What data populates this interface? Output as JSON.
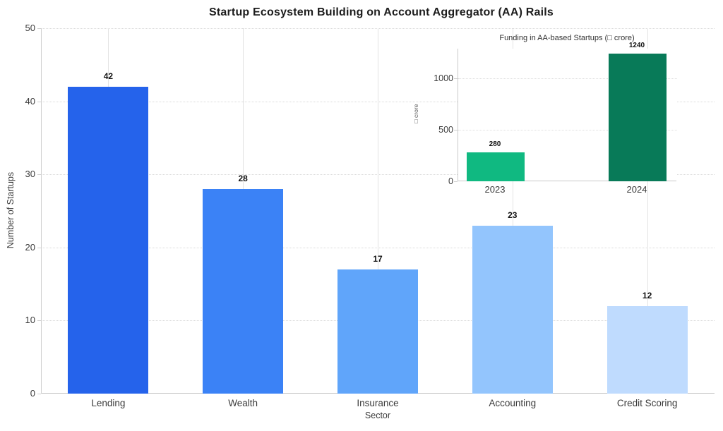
{
  "figure": {
    "background": "#ffffff"
  },
  "chart_data": [
    {
      "type": "bar",
      "title": "Startup Ecosystem Building on Account Aggregator (AA) Rails",
      "xlabel": "Sector",
      "ylabel": "Number of Startups",
      "categories": [
        "Lending",
        "Wealth",
        "Insurance",
        "Accounting",
        "Credit Scoring"
      ],
      "values": [
        42,
        28,
        17,
        23,
        12
      ],
      "value_labels": [
        "42",
        "28",
        "17",
        "23",
        "12"
      ],
      "bar_colors": [
        "#2563eb",
        "#3b82f6",
        "#60a5fa",
        "#93c5fd",
        "#bfdbfe"
      ],
      "ylim": [
        0,
        50
      ],
      "yticks": [
        0,
        10,
        20,
        30,
        40,
        50
      ],
      "grid": true,
      "legend": "none"
    },
    {
      "type": "bar",
      "title": "Funding in AA-based Startups (□ crore)",
      "xlabel": "",
      "ylabel": "□ crore",
      "categories": [
        "2023",
        "2024"
      ],
      "values": [
        280,
        1240
      ],
      "value_labels": [
        "280",
        "1240"
      ],
      "bar_colors": [
        "#10b981",
        "#087a58"
      ],
      "ylim": [
        0,
        1290
      ],
      "yticks": [
        0,
        500,
        1000
      ],
      "grid": true,
      "legend": "none",
      "position_hint": "inset top-right"
    }
  ]
}
